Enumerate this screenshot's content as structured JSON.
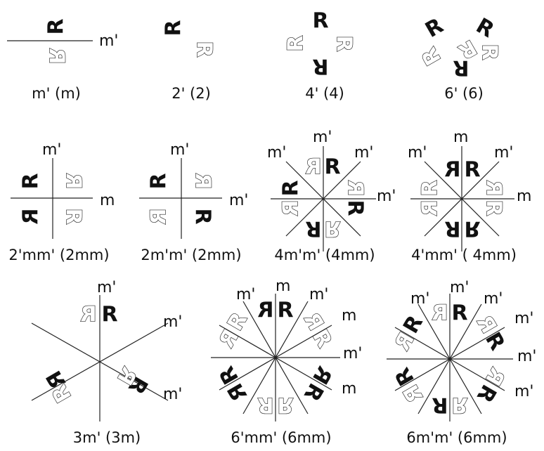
{
  "panels": [
    {
      "id": "m-prime",
      "caption": "m' (m)",
      "labels": [
        "m'"
      ]
    },
    {
      "id": "2-prime",
      "caption": "2' (2)",
      "labels": []
    },
    {
      "id": "4-prime",
      "caption": "4' (4)",
      "labels": []
    },
    {
      "id": "6-prime",
      "caption": "6' (6)",
      "labels": []
    },
    {
      "id": "2-prime-m-m-prime",
      "caption": "2'mm' (2mm)",
      "labels": [
        "m'",
        "m"
      ]
    },
    {
      "id": "2-m-prime-m-prime",
      "caption": "2m'm' (2mm)",
      "labels": [
        "m'",
        "m'"
      ]
    },
    {
      "id": "4-m-prime-m-prime",
      "caption": "4m'm' (4mm)",
      "labels": [
        "m'",
        "m'",
        "m'",
        "m'"
      ]
    },
    {
      "id": "4-prime-m-m-prime",
      "caption": "4'mm' ( 4mm)",
      "labels": [
        "m'",
        "m",
        "m'",
        "m"
      ]
    },
    {
      "id": "3-m-prime",
      "caption": "3m' (3m)",
      "labels": [
        "m'",
        "m'",
        "m'"
      ]
    },
    {
      "id": "6-prime-m-m-prime",
      "caption": "6'mm' (6mm)",
      "labels": [
        "m'",
        "m",
        "m'",
        "m",
        "m'",
        "m"
      ]
    },
    {
      "id": "6-m-prime-m-prime",
      "caption": "6m'm' (6mm)",
      "labels": [
        "m'",
        "m'",
        "m'",
        "m'",
        "m'",
        "m'"
      ]
    }
  ],
  "motif": {
    "letter": "R"
  },
  "colors": {
    "filled": "#111111",
    "outline": "#222222",
    "line": "#222222"
  }
}
